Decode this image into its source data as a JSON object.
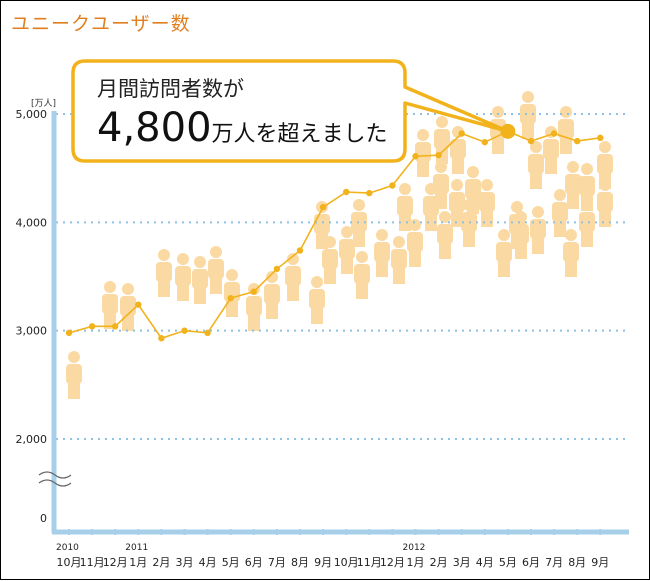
{
  "chart_data": {
    "type": "line",
    "title": "ユニークユーザー数",
    "y_unit": "[万人]",
    "ylim": [
      0,
      5000
    ],
    "yticks": [
      "5,000",
      "4,000",
      "3,000",
      "2,000",
      "0"
    ],
    "axis_break": true,
    "grid": true,
    "year_labels": [
      {
        "index": 0,
        "label": "2010"
      },
      {
        "index": 3,
        "label": "2011"
      },
      {
        "index": 15,
        "label": "2012"
      }
    ],
    "categories": [
      "10月",
      "11月",
      "12月",
      "1月",
      "2月",
      "3月",
      "4月",
      "5月",
      "6月",
      "7月",
      "8月",
      "9月",
      "10月",
      "11月",
      "12月",
      "1月",
      "2月",
      "3月",
      "4月",
      "5月",
      "6月",
      "7月",
      "8月",
      "9月"
    ],
    "values": [
      2980,
      3040,
      3040,
      3240,
      2930,
      3000,
      2980,
      3300,
      3360,
      3570,
      3740,
      4140,
      4280,
      4270,
      4340,
      4610,
      4620,
      4820,
      4740,
      4840,
      4750,
      4820,
      4750,
      4780
    ],
    "highlight_index": 19
  },
  "callout": {
    "line1": "月間訪問者数が",
    "number": "4,800",
    "line2_rest": "万人を超えました"
  },
  "colors": {
    "title": "#e07f1f",
    "line": "#f2b21b",
    "marker": "#f2b21b",
    "figure": "#fbd9a3",
    "axis": "#a7cfea",
    "grid": "#8fc1e3",
    "callout_border": "#f2b21b"
  },
  "decoration": "people-figure-icons"
}
